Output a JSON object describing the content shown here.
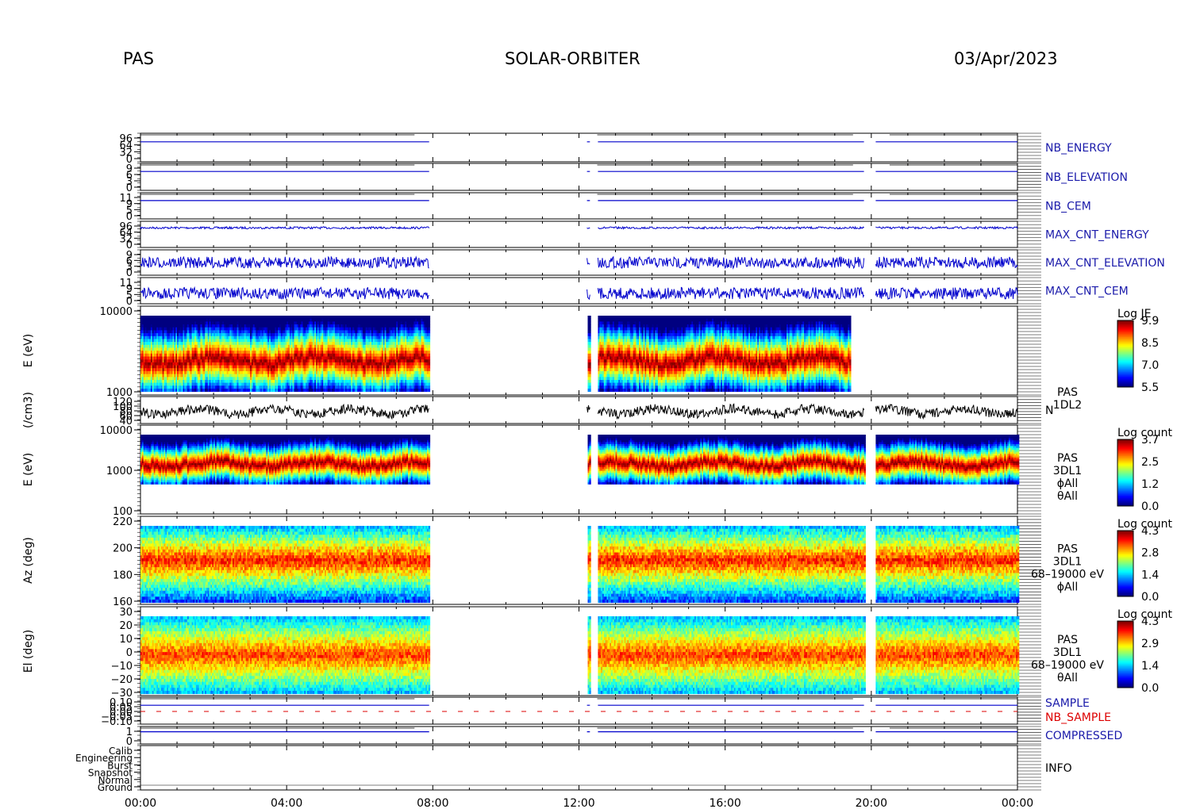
{
  "header": {
    "instrument": "PAS",
    "mission": "SOLAR-ORBITER",
    "date": "03/Apr/2023"
  },
  "colors": {
    "housekeeping_trace": "#0000cc",
    "density_trace": "#000000",
    "sample_red": "#dd0000",
    "background": "#ffffff"
  },
  "chart_data": {
    "type": "heatmap",
    "time_axis": {
      "tick_labels": [
        "00:00",
        "04:00",
        "08:00",
        "12:00",
        "16:00",
        "20:00",
        "00:00"
      ],
      "range_hours": [
        0,
        24
      ]
    },
    "data_gaps_hours": [
      [
        7.9,
        12.2
      ],
      [
        12.3,
        12.5
      ],
      [
        19.8,
        20.1
      ]
    ],
    "panels": [
      {
        "name": "NB_ENERGY",
        "kind": "line",
        "ytick_labels": [
          "96",
          "64",
          "32",
          "0"
        ],
        "color": "#0000cc"
      },
      {
        "name": "NB_ELEVATION",
        "kind": "line",
        "ytick_labels": [
          "9",
          "6",
          "3",
          "0"
        ],
        "color": "#0000cc"
      },
      {
        "name": "NB_CEM",
        "kind": "line",
        "ytick_labels": [
          "11",
          "9",
          "5",
          "0"
        ],
        "color": "#0000cc"
      },
      {
        "name": "MAX_CNT_ENERGY",
        "kind": "line",
        "ytick_labels": [
          "96",
          "64",
          "32",
          "0"
        ],
        "color": "#0000cc",
        "level": 0.75
      },
      {
        "name": "MAX_CNT_ELEVATION",
        "kind": "line",
        "ytick_labels": [
          "9",
          "6",
          "3",
          "0"
        ],
        "color": "#0000cc",
        "level": 0.5
      },
      {
        "name": "MAX_CNT_CEM",
        "kind": "line",
        "ytick_labels": [
          "11",
          "9",
          "5",
          "0"
        ],
        "color": "#0000cc",
        "level": 0.4
      },
      {
        "name": "PAS 1DL2 energy spectrogram",
        "kind": "spectrogram",
        "ylabel": "E (eV)",
        "ytick_labels": [
          "10000",
          "1000"
        ],
        "colorbar": {
          "title": "Log JE",
          "ticks": [
            "9.9",
            "8.5",
            "7.0",
            "5.5"
          ]
        },
        "peak_energy_eV": 1500
      },
      {
        "name": "N",
        "kind": "line",
        "ylabel": "(/cm3)",
        "ytick_labels": [
          "120",
          "100",
          "80",
          "60",
          "40"
        ],
        "color": "#000000",
        "label_lines": [
          "PAS",
          "1DL2"
        ],
        "series_label": "N"
      },
      {
        "name": "PAS 3DL1 energy spectrogram",
        "kind": "spectrogram",
        "ylabel": "E (eV)",
        "ytick_labels": [
          "10000",
          "1000",
          "100"
        ],
        "colorbar": {
          "title": "Log count",
          "ticks": [
            "3.7",
            "2.5",
            "1.2",
            "0.0"
          ]
        },
        "label_lines": [
          "PAS",
          "3DL1",
          "ϕAll",
          "θAll"
        ]
      },
      {
        "name": "PAS 3DL1 azimuth spectrogram",
        "kind": "spectrogram",
        "ylabel": "Az (deg)",
        "ytick_labels": [
          "220",
          "200",
          "180",
          "160"
        ],
        "colorbar": {
          "title": "Log count",
          "ticks": [
            "4.3",
            "2.8",
            "1.4",
            "0.0"
          ]
        },
        "label_lines": [
          "PAS",
          "3DL1",
          "68–19000 eV",
          "ϕAll"
        ]
      },
      {
        "name": "PAS 3DL1 elevation spectrogram",
        "kind": "spectrogram",
        "ylabel": "El (deg)",
        "ytick_labels": [
          "30",
          "20",
          "10",
          "0",
          "−10",
          "−20",
          "−30"
        ],
        "colorbar": {
          "title": "Log count",
          "ticks": [
            "4.3",
            "2.9",
            "1.4",
            "0.0"
          ]
        },
        "label_lines": [
          "PAS",
          "3DL1",
          "68–19000 eV",
          "θAll"
        ]
      },
      {
        "name": "SAMPLE / NB_SAMPLE",
        "kind": "line",
        "ytick_labels": [
          "0.10",
          "0.05",
          "0.00",
          "−0.05",
          "−0.10"
        ],
        "legend": [
          "SAMPLE",
          "NB_SAMPLE"
        ]
      },
      {
        "name": "COMPRESSED",
        "kind": "line",
        "ytick_labels": [
          "1",
          "0"
        ],
        "color": "#0000cc"
      },
      {
        "name": "INFO",
        "kind": "categorical",
        "ytick_labels": [
          "Calib",
          "Engineering",
          "Burst",
          "Snapshot",
          "Normal",
          "Ground"
        ]
      }
    ],
    "grid": false
  }
}
